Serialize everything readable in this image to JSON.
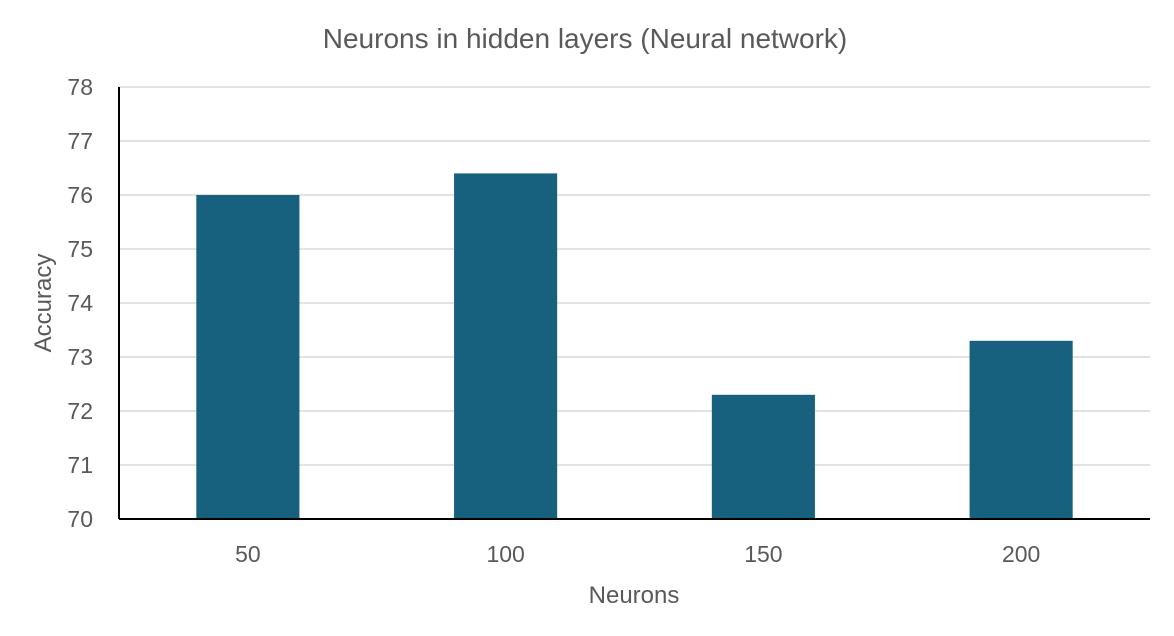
{
  "chart_data": {
    "type": "bar",
    "title": "Neurons in hidden layers (Neural network)",
    "xlabel": "Neurons",
    "ylabel": "Accuracy",
    "categories": [
      "50",
      "100",
      "150",
      "200"
    ],
    "values": [
      76.0,
      76.4,
      72.3,
      73.3
    ],
    "ylim": [
      70,
      78
    ],
    "yticks": [
      "70",
      "71",
      "72",
      "73",
      "74",
      "75",
      "76",
      "77",
      "78"
    ],
    "grid": true,
    "legend": "none",
    "bar_color": "#17607e"
  }
}
